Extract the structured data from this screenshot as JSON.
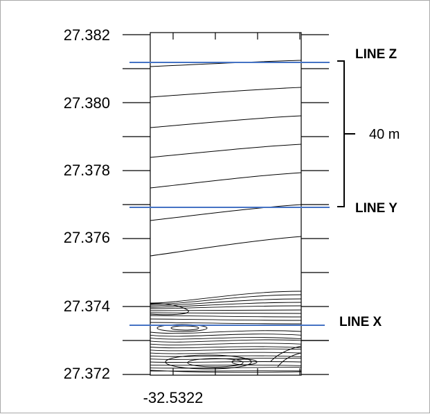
{
  "chart_data": {
    "type": "contour",
    "y_axis": {
      "ticks": [
        "27.382",
        "27.380",
        "27.378",
        "27.376",
        "27.374",
        "27.372"
      ],
      "tick_values": [
        27.382,
        27.38,
        27.378,
        27.376,
        27.374,
        27.372
      ],
      "range": [
        27.372,
        27.382
      ]
    },
    "x_axis": {
      "ticks": [
        "-32.5322"
      ]
    },
    "profile_lines": [
      {
        "name": "LINE Z",
        "y": 27.3812
      },
      {
        "name": "LINE Y",
        "y": 27.377
      },
      {
        "name": "LINE X",
        "y": 27.3734
      }
    ],
    "distance_annotation": {
      "label": "40 m",
      "between": [
        "LINE Z",
        "LINE Y"
      ]
    },
    "line_color": "#4472c4",
    "contour_color": "#000000"
  }
}
